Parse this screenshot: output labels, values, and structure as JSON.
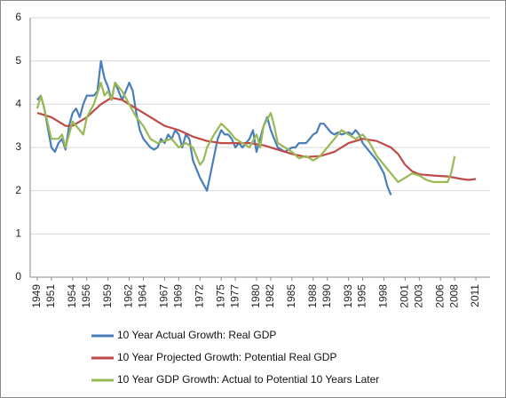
{
  "chart_data": {
    "type": "line",
    "xlim": [
      1948,
      2013
    ],
    "xticks": [
      1949,
      1951,
      1954,
      1956,
      1959,
      1962,
      1964,
      1967,
      1969,
      1972,
      1975,
      1977,
      1980,
      1982,
      1985,
      1988,
      1990,
      1993,
      1995,
      1998,
      2001,
      2003,
      2006,
      2008,
      2011
    ],
    "ylim": [
      0,
      6
    ],
    "yticks": [
      0,
      1,
      2,
      3,
      4,
      5,
      6
    ],
    "grid": true,
    "series": [
      {
        "name": "10 Year Actual Growth: Real GDP",
        "color": "#4a7ebb",
        "x": [
          1949,
          1949.5,
          1950,
          1951,
          1951.5,
          1952,
          1952.5,
          1953,
          1953.5,
          1954,
          1954.5,
          1955,
          1955.5,
          1956,
          1956.5,
          1957,
          1957.5,
          1958,
          1958.5,
          1959,
          1959.5,
          1960,
          1960.5,
          1961,
          1961.5,
          1962,
          1962.5,
          1963,
          1963.5,
          1964,
          1965,
          1965.5,
          1966,
          1966.5,
          1967,
          1967.5,
          1968,
          1968.5,
          1969,
          1969.5,
          1970,
          1970.5,
          1971,
          1972,
          1973,
          1973.5,
          1974,
          1974.5,
          1975,
          1975.5,
          1976,
          1976.5,
          1977,
          1977.5,
          1978,
          1978.5,
          1979,
          1979.5,
          1980,
          1980.5,
          1981,
          1981.5,
          1982,
          1982.5,
          1983,
          1984,
          1985,
          1985.5,
          1986,
          1987,
          1987.5,
          1988,
          1988.5,
          1989,
          1989.5,
          1990,
          1990.5,
          1991,
          1991.5,
          1992,
          1993,
          1993.5,
          1994,
          1994.5,
          1995,
          1995.5,
          1996,
          1997,
          1998,
          1998.5,
          1999
        ],
        "values": [
          4.1,
          4.2,
          3.9,
          3.0,
          2.9,
          3.1,
          3.2,
          2.95,
          3.5,
          3.8,
          3.9,
          3.7,
          4.0,
          4.2,
          4.2,
          4.2,
          4.3,
          5.0,
          4.6,
          4.4,
          4.1,
          4.5,
          4.3,
          4.1,
          4.3,
          4.5,
          4.3,
          3.8,
          3.4,
          3.2,
          3.0,
          2.95,
          3.0,
          3.2,
          3.1,
          3.3,
          3.2,
          3.4,
          3.3,
          3.0,
          3.3,
          3.2,
          2.7,
          2.3,
          2.0,
          2.4,
          2.8,
          3.2,
          3.4,
          3.3,
          3.3,
          3.2,
          3.0,
          3.1,
          3.0,
          3.1,
          3.2,
          3.4,
          2.9,
          3.2,
          3.5,
          3.7,
          3.4,
          3.2,
          3.0,
          2.9,
          3.0,
          3.0,
          3.1,
          3.1,
          3.2,
          3.3,
          3.35,
          3.55,
          3.55,
          3.45,
          3.35,
          3.3,
          3.35,
          3.3,
          3.35,
          3.3,
          3.4,
          3.3,
          3.1,
          3.0,
          2.9,
          2.7,
          2.4,
          2.1,
          1.9
        ]
      },
      {
        "name": "10 Year Projected Growth: Potential Real GDP",
        "color": "#be4b48",
        "x": [
          1949,
          1951,
          1953,
          1954,
          1956,
          1958,
          1959.5,
          1961,
          1963,
          1965,
          1967,
          1969,
          1971,
          1973,
          1975,
          1977,
          1979,
          1981,
          1983,
          1985,
          1987,
          1989,
          1991,
          1993,
          1995,
          1997,
          1999,
          2000,
          2001,
          2002,
          2003,
          2005,
          2007,
          2009,
          2010,
          2011
        ],
        "values": [
          3.8,
          3.7,
          3.5,
          3.5,
          3.7,
          4.0,
          4.15,
          4.1,
          3.9,
          3.7,
          3.5,
          3.4,
          3.25,
          3.15,
          3.1,
          3.1,
          3.1,
          3.05,
          2.95,
          2.85,
          2.78,
          2.8,
          2.9,
          3.1,
          3.2,
          3.15,
          3.0,
          2.85,
          2.6,
          2.45,
          2.38,
          2.35,
          2.33,
          2.27,
          2.25,
          2.27
        ]
      },
      {
        "name": "10 Year GDP Growth: Actual to Potential 10 Years Later",
        "color": "#98b954",
        "x": [
          1949,
          1949.5,
          1950,
          1951,
          1952,
          1952.5,
          1953,
          1954,
          1955,
          1955.5,
          1956,
          1957,
          1958,
          1958.5,
          1959,
          1959.5,
          1960,
          1961,
          1962,
          1963,
          1964,
          1965,
          1966,
          1967,
          1968,
          1969,
          1970,
          1971,
          1972,
          1972.5,
          1973,
          1974,
          1975,
          1976,
          1977,
          1978,
          1979,
          1980,
          1980.5,
          1981,
          1982,
          1982.5,
          1983,
          1984,
          1985,
          1986,
          1987,
          1988,
          1989,
          1990,
          1991,
          1992,
          1993,
          1994,
          1995,
          1996,
          1997,
          1998,
          1999,
          2000,
          2001,
          2002,
          2003,
          2004,
          2005,
          2006,
          2007,
          2007.5,
          2008
        ],
        "values": [
          3.9,
          4.2,
          3.9,
          3.2,
          3.2,
          3.3,
          3.0,
          3.6,
          3.4,
          3.3,
          3.7,
          4.0,
          4.5,
          4.2,
          4.3,
          4.1,
          4.5,
          4.3,
          4.0,
          3.7,
          3.5,
          3.2,
          3.1,
          3.15,
          3.2,
          3.0,
          3.1,
          3.0,
          2.6,
          2.7,
          3.0,
          3.3,
          3.55,
          3.4,
          3.2,
          3.1,
          3.0,
          3.3,
          3.0,
          3.5,
          3.8,
          3.5,
          3.1,
          3.0,
          2.9,
          2.75,
          2.8,
          2.7,
          2.8,
          3.0,
          3.2,
          3.4,
          3.3,
          3.2,
          3.3,
          3.1,
          2.8,
          2.6,
          2.4,
          2.2,
          2.3,
          2.4,
          2.35,
          2.25,
          2.2,
          2.2,
          2.2,
          2.4,
          2.8
        ]
      }
    ]
  }
}
